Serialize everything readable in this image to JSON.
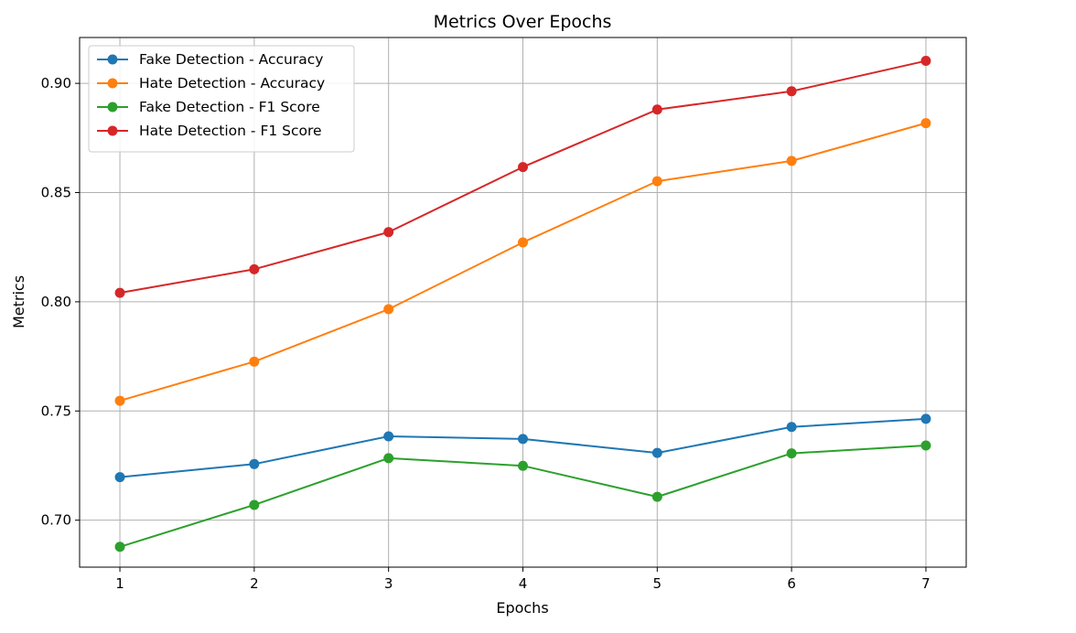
{
  "chart_data": {
    "type": "line",
    "title": "Metrics Over Epochs",
    "xlabel": "Epochs",
    "ylabel": "Metrics",
    "x": [
      1,
      2,
      3,
      4,
      5,
      6,
      7
    ],
    "xlim": [
      0.7,
      7.3
    ],
    "ylim": [
      0.6785,
      0.921
    ],
    "yticks": [
      0.7,
      0.75,
      0.8,
      0.85,
      0.9
    ],
    "ytick_labels": [
      "0.70",
      "0.75",
      "0.80",
      "0.85",
      "0.90"
    ],
    "xtick_labels": [
      "1",
      "2",
      "3",
      "4",
      "5",
      "6",
      "7"
    ],
    "grid": true,
    "legend_position": "top-left",
    "series": [
      {
        "name": "Fake Detection - Accuracy",
        "color": "#1f77b4",
        "values": [
          0.7197,
          0.7257,
          0.7384,
          0.7372,
          0.7308,
          0.7427,
          0.7464
        ]
      },
      {
        "name": "Hate Detection - Accuracy",
        "color": "#ff7f0e",
        "values": [
          0.7547,
          0.7726,
          0.7966,
          0.8272,
          0.8552,
          0.8645,
          0.8818
        ]
      },
      {
        "name": "Fake Detection - F1 Score",
        "color": "#2ca02c",
        "values": [
          0.6878,
          0.707,
          0.7284,
          0.7249,
          0.7107,
          0.7306,
          0.7342
        ]
      },
      {
        "name": "Hate Detection - F1 Score",
        "color": "#d62728",
        "values": [
          0.8041,
          0.8149,
          0.8319,
          0.8617,
          0.888,
          0.8964,
          0.9103
        ]
      }
    ]
  }
}
